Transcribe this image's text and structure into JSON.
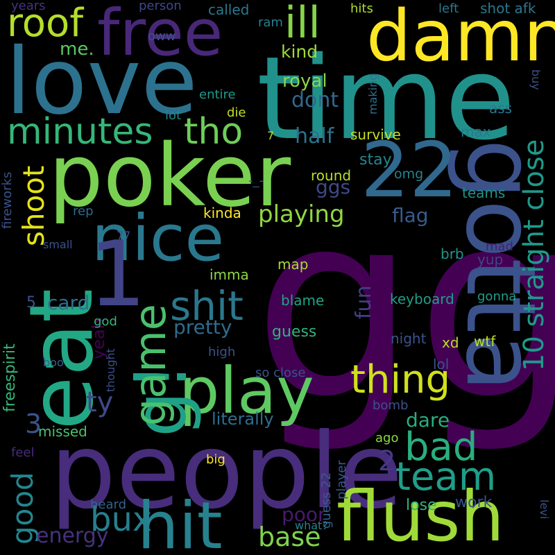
{
  "words": [
    {
      "text": "gg",
      "color": "#440154"
    },
    {
      "text": "time",
      "color": "#21918c"
    },
    {
      "text": "people",
      "color": "#472d7b"
    },
    {
      "text": "poker",
      "color": "#7ad151"
    },
    {
      "text": "love",
      "color": "#2c728e"
    },
    {
      "text": "gotta",
      "color": "#3b528b"
    },
    {
      "text": "eat",
      "color": "#22a884"
    },
    {
      "text": "damn",
      "color": "#fde725"
    },
    {
      "text": "free",
      "color": "#482878"
    },
    {
      "text": "22",
      "color": "#31688e"
    },
    {
      "text": "nice",
      "color": "#2a788e"
    },
    {
      "text": "flush",
      "color": "#a0da39"
    },
    {
      "text": "hit",
      "color": "#26828e"
    },
    {
      "text": "play",
      "color": "#5ec962"
    },
    {
      "text": "1",
      "color": "#414487"
    },
    {
      "text": "g!",
      "color": "#1fa187"
    },
    {
      "text": "game",
      "color": "#4ac16d"
    },
    {
      "text": "minutes",
      "color": "#35b779"
    },
    {
      "text": "tho",
      "color": "#6ece58"
    },
    {
      "text": "shit",
      "color": "#2a788e"
    },
    {
      "text": "thing",
      "color": "#d0e11c"
    },
    {
      "text": "team",
      "color": "#1f9e89"
    },
    {
      "text": "bad",
      "color": "#29af7f"
    },
    {
      "text": "bux",
      "color": "#277f8e"
    },
    {
      "text": "ill",
      "color": "#86d549"
    },
    {
      "text": "roof",
      "color": "#b5de2b"
    },
    {
      "text": "10 straight close",
      "color": "#1f9a8a"
    },
    {
      "text": "shoot",
      "color": "#e5e419"
    },
    {
      "text": "ty",
      "color": "#3e4989"
    },
    {
      "text": "good",
      "color": "#24868e"
    },
    {
      "text": "base",
      "color": "#7fd34e"
    },
    {
      "text": "playing",
      "color": "#90d743"
    },
    {
      "text": "energy",
      "color": "#46327e"
    },
    {
      "text": "card",
      "color": "#2e6f8e"
    },
    {
      "text": "3",
      "color": "#3b528b"
    },
    {
      "text": "2",
      "color": "#443983"
    },
    {
      "text": "pretty",
      "color": "#2f6c8e"
    },
    {
      "text": "half",
      "color": "#2c728e"
    },
    {
      "text": "dont",
      "color": "#31688e"
    },
    {
      "text": "royal",
      "color": "#8bd646"
    },
    {
      "text": "kind",
      "color": "#9fda3a"
    },
    {
      "text": "me.",
      "color": "#5ac864"
    },
    {
      "text": "ggs",
      "color": "#3e4989"
    },
    {
      "text": "flag",
      "color": "#365c8d"
    },
    {
      "text": "fun",
      "color": "#423f85"
    },
    {
      "text": "yeah",
      "color": "#440154"
    },
    {
      "text": "poor",
      "color": "#481a6c"
    },
    {
      "text": "dare",
      "color": "#27ad81"
    },
    {
      "text": "literally",
      "color": "#2e6e8e"
    },
    {
      "text": "lose",
      "color": "#32b67a"
    },
    {
      "text": "work",
      "color": "#3b528b"
    },
    {
      "text": "keyboard",
      "color": "#1f9e89"
    },
    {
      "text": "guess",
      "color": "#2fb47c"
    },
    {
      "text": "blame",
      "color": "#20a386"
    },
    {
      "text": "map",
      "color": "#a8db34"
    },
    {
      "text": "imma",
      "color": "#8ed645"
    },
    {
      "text": "kinda",
      "color": "#fde725"
    },
    {
      "text": "survive",
      "color": "#c2df23"
    },
    {
      "text": "stay",
      "color": "#24878e"
    },
    {
      "text": "round",
      "color": "#b8de29"
    },
    {
      "text": "omg",
      "color": "#26828e"
    },
    {
      "text": "teams",
      "color": "#1f958b"
    },
    {
      "text": "max",
      "color": "#29798e"
    },
    {
      "text": "ass",
      "color": "#2a768e"
    },
    {
      "text": "shot afk",
      "color": "#2a788e"
    },
    {
      "text": "hits",
      "color": "#addc30"
    },
    {
      "text": "left",
      "color": "#2a788e"
    },
    {
      "text": "called",
      "color": "#2a788e"
    },
    {
      "text": "person",
      "color": "#3e4989"
    },
    {
      "text": "years",
      "color": "#46337f"
    },
    {
      "text": "ram",
      "color": "#26818e"
    },
    {
      "text": "oww",
      "color": "#3b528b"
    },
    {
      "text": "entire",
      "color": "#1f9a8a"
    },
    {
      "text": "lot",
      "color": "#238a8d"
    },
    {
      "text": "die",
      "color": "#c2df23"
    },
    {
      "text": "7",
      "color": "#b5de2b"
    },
    {
      "text": "making",
      "color": "#2d718e"
    },
    {
      "text": "buy",
      "color": "#3b528b"
    },
    {
      "text": "brb",
      "color": "#1f978b"
    },
    {
      "text": "yup",
      "color": "#414487"
    },
    {
      "text": "mad",
      "color": "#481f70"
    },
    {
      "text": "gonna",
      "color": "#1f9e89"
    },
    {
      "text": "night",
      "color": "#3b528b"
    },
    {
      "text": "wtf",
      "color": "#bddf26"
    },
    {
      "text": "xd",
      "color": "#bddf26"
    },
    {
      "text": "lol",
      "color": "#3b528b"
    },
    {
      "text": "bomb",
      "color": "#3b528b"
    },
    {
      "text": "ago",
      "color": "#90d743"
    },
    {
      "text": "player",
      "color": "#38598c"
    },
    {
      "text": "guess 22",
      "color": "#355f8d"
    },
    {
      "text": "what?",
      "color": "#26818e"
    },
    {
      "text": "heard",
      "color": "#33638d"
    },
    {
      "text": "levi",
      "color": "#3b528b"
    },
    {
      "text": "big",
      "color": "#fde725"
    },
    {
      "text": "feel",
      "color": "#472c7a"
    },
    {
      "text": "missed",
      "color": "#4ac16d"
    },
    {
      "text": "freespirit",
      "color": "#35b779"
    },
    {
      "text": "fireworks",
      "color": "#3b528b"
    },
    {
      "text": "small",
      "color": "#3b528b"
    },
    {
      "text": "rep",
      "color": "#30698e"
    },
    {
      "text": "77",
      "color": "#3b528b"
    },
    {
      "text": "boo",
      "color": "#33638d"
    },
    {
      "text": "thought",
      "color": "#3b528b"
    },
    {
      "text": "god",
      "color": "#35b779"
    },
    {
      "text": "high",
      "color": "#3b528b"
    },
    {
      "text": "so close",
      "color": "#3b528b"
    },
    {
      "text": "5",
      "color": "#3b528b"
    },
    {
      "text": "-_-",
      "color": "#3b528b"
    }
  ]
}
